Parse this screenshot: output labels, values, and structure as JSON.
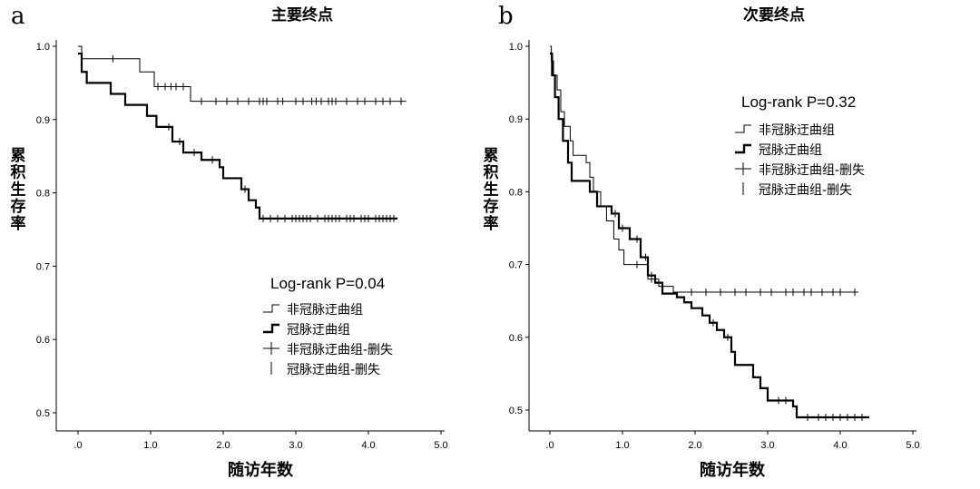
{
  "chart_data": [
    {
      "type": "line",
      "panel_label": "a",
      "title": "主要终点",
      "xlabel": "随访年数",
      "ylabel": "累积生存率",
      "xlim": [
        0,
        5
      ],
      "ylim": [
        0.5,
        1.0
      ],
      "x_ticks": [
        ".0",
        "1.0",
        "2.0",
        "3.0",
        "4.0",
        "5.0"
      ],
      "y_ticks": [
        "1.0",
        "0.9",
        "0.8",
        "0.7",
        "0.6",
        "0.5"
      ],
      "annotation": "Log-rank P=0.04",
      "legend": [
        "非冠脉迂曲组",
        "冠脉迂曲组",
        "非冠脉迂曲组-删失",
        "冠脉迂曲组-删失"
      ],
      "series": [
        {
          "name": "非冠脉迂曲组",
          "style": "thin",
          "steps": [
            [
              0,
              1.0
            ],
            [
              0.05,
              0.983
            ],
            [
              0.85,
              0.965
            ],
            [
              1.05,
              0.945
            ],
            [
              1.55,
              0.925
            ],
            [
              4.52,
              0.925
            ]
          ],
          "censored": [
            0.48,
            1.1,
            1.2,
            1.28,
            1.35,
            1.45,
            1.7,
            1.9,
            2.05,
            2.2,
            2.35,
            2.5,
            2.55,
            2.6,
            2.75,
            2.82,
            3.0,
            3.1,
            3.22,
            3.28,
            3.35,
            3.45,
            3.5,
            3.55,
            3.7,
            3.85,
            3.95,
            4.1,
            4.2,
            4.3,
            4.45
          ]
        },
        {
          "name": "冠脉迂曲组",
          "style": "thick",
          "steps": [
            [
              0,
              0.99
            ],
            [
              0.05,
              0.965
            ],
            [
              0.12,
              0.95
            ],
            [
              0.45,
              0.935
            ],
            [
              0.65,
              0.92
            ],
            [
              0.95,
              0.905
            ],
            [
              1.08,
              0.89
            ],
            [
              1.3,
              0.87
            ],
            [
              1.45,
              0.855
            ],
            [
              1.7,
              0.845
            ],
            [
              1.95,
              0.835
            ],
            [
              2.0,
              0.82
            ],
            [
              2.25,
              0.805
            ],
            [
              2.35,
              0.79
            ],
            [
              2.45,
              0.78
            ],
            [
              2.5,
              0.765
            ],
            [
              4.4,
              0.765
            ]
          ],
          "censored": [
            1.25,
            1.4,
            1.6,
            1.85,
            2.3,
            2.55,
            2.65,
            2.75,
            2.85,
            2.95,
            3.0,
            3.05,
            3.1,
            3.15,
            3.2,
            3.3,
            3.4,
            3.45,
            3.5,
            3.55,
            3.6,
            3.7,
            3.75,
            3.8,
            3.9,
            3.95,
            4.0,
            4.1,
            4.15,
            4.2,
            4.25,
            4.3,
            4.35
          ]
        }
      ]
    },
    {
      "type": "line",
      "panel_label": "b",
      "title": "次要终点",
      "xlabel": "随访年数",
      "ylabel": "累积生存率",
      "xlim": [
        0,
        5
      ],
      "ylim": [
        0.475,
        1.0
      ],
      "x_ticks": [
        ".0",
        "1.0",
        "2.0",
        "3.0",
        "4.0",
        "5.0"
      ],
      "y_ticks": [
        "1.0",
        "0.9",
        "0.8",
        "0.7",
        "0.6",
        "0.5"
      ],
      "annotation": "Log-rank P=0.32",
      "legend": [
        "非冠脉迂曲组",
        "冠脉迂曲组",
        "非冠脉迂曲组-删失",
        "冠脉迂曲组-删失"
      ],
      "series": [
        {
          "name": "非冠脉迂曲组",
          "style": "thin",
          "steps": [
            [
              0,
              1.0
            ],
            [
              0.02,
              0.98
            ],
            [
              0.05,
              0.96
            ],
            [
              0.1,
              0.94
            ],
            [
              0.15,
              0.91
            ],
            [
              0.2,
              0.89
            ],
            [
              0.28,
              0.87
            ],
            [
              0.32,
              0.85
            ],
            [
              0.5,
              0.84
            ],
            [
              0.55,
              0.82
            ],
            [
              0.6,
              0.8
            ],
            [
              0.7,
              0.78
            ],
            [
              0.78,
              0.76
            ],
            [
              0.88,
              0.735
            ],
            [
              0.95,
              0.72
            ],
            [
              1.02,
              0.7
            ],
            [
              1.2,
              0.7
            ],
            [
              1.35,
              0.68
            ],
            [
              1.5,
              0.67
            ],
            [
              1.7,
              0.662
            ],
            [
              4.25,
              0.662
            ]
          ],
          "censored": [
            1.2,
            1.4,
            1.55,
            1.95,
            2.15,
            2.35,
            2.55,
            2.7,
            2.9,
            3.05,
            3.25,
            3.35,
            3.5,
            3.6,
            3.75,
            3.9,
            4.0,
            4.2
          ]
        },
        {
          "name": "冠脉迂曲组",
          "style": "thick",
          "steps": [
            [
              0,
              0.99
            ],
            [
              0.03,
              0.96
            ],
            [
              0.07,
              0.93
            ],
            [
              0.12,
              0.9
            ],
            [
              0.18,
              0.87
            ],
            [
              0.25,
              0.84
            ],
            [
              0.3,
              0.815
            ],
            [
              0.55,
              0.8
            ],
            [
              0.65,
              0.78
            ],
            [
              0.85,
              0.77
            ],
            [
              0.95,
              0.75
            ],
            [
              1.1,
              0.735
            ],
            [
              1.25,
              0.71
            ],
            [
              1.35,
              0.685
            ],
            [
              1.45,
              0.675
            ],
            [
              1.55,
              0.66
            ],
            [
              1.75,
              0.655
            ],
            [
              1.85,
              0.648
            ],
            [
              1.95,
              0.64
            ],
            [
              2.1,
              0.63
            ],
            [
              2.2,
              0.62
            ],
            [
              2.3,
              0.61
            ],
            [
              2.4,
              0.6
            ],
            [
              2.5,
              0.58
            ],
            [
              2.55,
              0.562
            ],
            [
              2.8,
              0.545
            ],
            [
              2.9,
              0.53
            ],
            [
              3.0,
              0.513
            ],
            [
              3.35,
              0.505
            ],
            [
              3.4,
              0.49
            ],
            [
              4.4,
              0.49
            ]
          ],
          "censored": [
            0.9,
            1.0,
            1.2,
            1.32,
            1.4,
            2.25,
            2.45,
            3.15,
            3.25,
            3.55,
            3.7,
            3.8,
            3.9,
            4.0,
            4.1,
            4.2,
            4.3
          ]
        }
      ]
    }
  ]
}
